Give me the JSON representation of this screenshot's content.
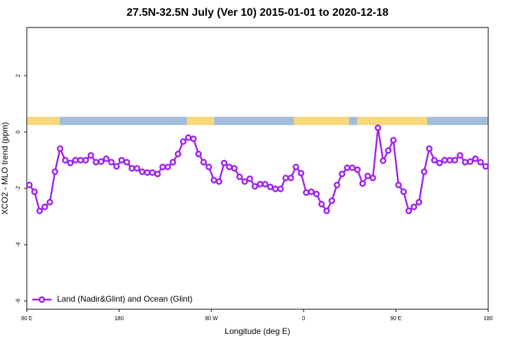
{
  "chart_data": {
    "type": "line",
    "title": "27.5N-32.5N July (Ver 10)   2015-01-01 to 2020-12-18",
    "xlabel": "Longitude (deg E)",
    "ylabel": "XCO2 - MLO trend (ppm)",
    "xlim": [
      90,
      540
    ],
    "ylim": [
      -6.29,
      3.71
    ],
    "xticks": [
      {
        "value": 90,
        "label": "90 E"
      },
      180,
      {
        "value": 270,
        "label": "90 W"
      },
      {
        "value": 360,
        "label": "0"
      },
      {
        "value": 450,
        "label": "90 E"
      },
      {
        "value": 540,
        "label": "180"
      }
    ],
    "yticks": [
      -6,
      -4,
      -2,
      0,
      2
    ],
    "legend": "bottom-left",
    "x": [
      92.5,
      97.5,
      102.5,
      107.5,
      112.5,
      117.5,
      122.5,
      127.5,
      132.5,
      137.5,
      142.5,
      147.5,
      152.5,
      157.5,
      162.5,
      167.5,
      172.5,
      177.5,
      182.5,
      187.5,
      192.5,
      197.5,
      202.5,
      207.5,
      212.5,
      217.5,
      222.5,
      227.5,
      232.5,
      237.5,
      242.5,
      247.5,
      252.5,
      257.5,
      262.5,
      267.5,
      272.5,
      277.5,
      282.5,
      287.5,
      292.5,
      297.5,
      302.5,
      307.5,
      312.5,
      317.5,
      322.5,
      327.5,
      332.5,
      337.5,
      342.5,
      347.5,
      352.5,
      357.5,
      362.5,
      367.5,
      372.5,
      377.5,
      382.5,
      387.5,
      392.5,
      397.5,
      402.5,
      407.5,
      412.5,
      417.5,
      422.5,
      427.5,
      432.5,
      437.5,
      442.5,
      447.5,
      452.5,
      457.5,
      462.5,
      467.5,
      472.5,
      477.5,
      482.5,
      487.5,
      492.5,
      497.5,
      502.5,
      507.5,
      512.5,
      517.5,
      522.5,
      527.5,
      532.5,
      537.5
    ],
    "series": [
      {
        "name": "Land (Nadir&Glint) and Ocean (Glint)",
        "color": "#a020f0",
        "values": [
          -1.88,
          -2.12,
          -2.8,
          -2.66,
          -2.49,
          -1.41,
          -0.59,
          -1.0,
          -1.1,
          -1.0,
          -1.0,
          -1.0,
          -0.83,
          -1.07,
          -1.05,
          -0.95,
          -1.07,
          -1.22,
          -1.0,
          -1.07,
          -1.29,
          -1.29,
          -1.41,
          -1.44,
          -1.44,
          -1.49,
          -1.24,
          -1.24,
          -1.07,
          -0.78,
          -0.34,
          -0.2,
          -0.24,
          -0.78,
          -1.07,
          -1.24,
          -1.71,
          -1.76,
          -1.1,
          -1.24,
          -1.29,
          -1.59,
          -1.76,
          -1.66,
          -1.93,
          -1.85,
          -1.85,
          -1.95,
          -2.02,
          -2.02,
          -1.63,
          -1.63,
          -1.24,
          -1.46,
          -2.15,
          -2.12,
          -2.2,
          -2.56,
          -2.8,
          -2.44,
          -1.88,
          -1.49,
          -1.27,
          -1.27,
          -1.34,
          -1.83,
          -1.56,
          -1.63,
          0.15,
          -1.02,
          -0.66,
          -0.29,
          -1.88,
          -2.12,
          -2.8,
          -2.66,
          -2.49,
          -1.41,
          -0.59,
          -1.0,
          -1.1,
          -1.0,
          -1.0,
          -1.0,
          -0.83,
          -1.07,
          -1.05,
          -0.95,
          -1.07,
          -1.22
        ]
      }
    ]
  }
}
